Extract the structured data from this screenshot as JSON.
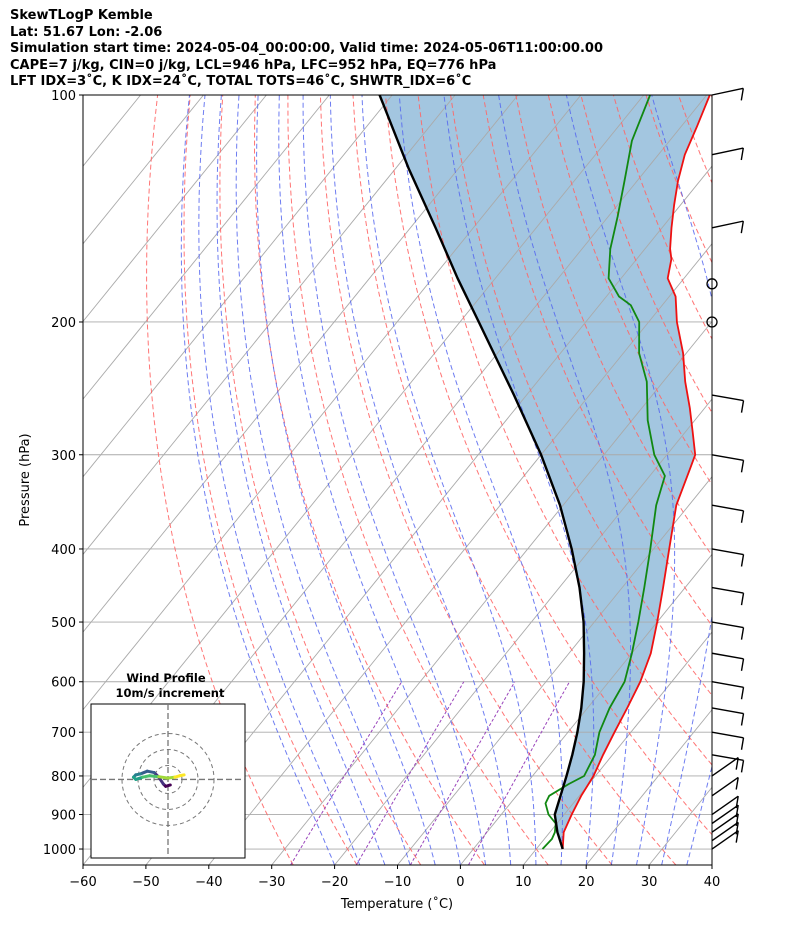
{
  "title": {
    "line1": "SkewTLogP Kemble",
    "line2": "Lat: 51.67   Lon: -2.06",
    "line3": "Simulation start time: 2024-05-04_00:00:00, Valid time: 2024-05-06T11:00:00.00",
    "line4": "CAPE=7 j/kg, CIN=0 j/kg, LCL=946 hPa, LFC=952 hPa, EQ=776 hPa",
    "line5": "LFT IDX=3˚C, K IDX=24˚C, TOTAL TOTS=46˚C, SHWTR_IDX=6˚C"
  },
  "chart_data": {
    "type": "line",
    "subtype": "skew-t log-p",
    "xlabel": "Temperature (˚C)",
    "ylabel": "Pressure (hPa)",
    "xlim": [
      -60,
      40
    ],
    "ylim": [
      1050,
      100
    ],
    "x_ticks": [
      "−60",
      "−50",
      "−40",
      "−30",
      "−20",
      "−10",
      "0",
      "10",
      "20",
      "30",
      "40"
    ],
    "x_tick_values": [
      -60,
      -50,
      -40,
      -30,
      -20,
      -10,
      0,
      10,
      20,
      30,
      40
    ],
    "y_ticks": [
      "100",
      "200",
      "300",
      "400",
      "500",
      "600",
      "700",
      "800",
      "900",
      "1000"
    ],
    "y_tick_values": [
      100,
      200,
      300,
      400,
      500,
      600,
      700,
      800,
      900,
      1000
    ],
    "colors": {
      "temperature": "#ee1111",
      "dewpoint": "#118811",
      "parcel": "#000000",
      "cape_fill": "#a3c6e0",
      "dry_adiabat": "#ff6666",
      "moist_adiabat": "#5566ee",
      "mixing_ratio": "#9944bb",
      "isotherm": "#aaaaaa"
    },
    "series": [
      {
        "name": "Temperature",
        "points": [
          [
            14.2,
            1000
          ],
          [
            12.2,
            950
          ],
          [
            11.2,
            900
          ],
          [
            10.3,
            850
          ],
          [
            9.7,
            800
          ],
          [
            8.5,
            750
          ],
          [
            7.4,
            700
          ],
          [
            6.3,
            650
          ],
          [
            5.0,
            600
          ],
          [
            3.0,
            550
          ],
          [
            0.0,
            500
          ],
          [
            -3.5,
            450
          ],
          [
            -7.5,
            400
          ],
          [
            -12,
            350
          ],
          [
            -14.6,
            312
          ],
          [
            -15.5,
            300
          ],
          [
            -18.8,
            280
          ],
          [
            -22.4,
            260
          ],
          [
            -26.5,
            240
          ],
          [
            -30.5,
            220
          ],
          [
            -35.5,
            200
          ],
          [
            -39,
            185
          ],
          [
            -42.6,
            175
          ],
          [
            -44.5,
            165
          ],
          [
            -46,
            160
          ],
          [
            -48.5,
            150
          ],
          [
            -51,
            140
          ],
          [
            -53.5,
            130
          ],
          [
            -55.8,
            120
          ],
          [
            -57.5,
            110
          ],
          [
            -59.5,
            100
          ]
        ]
      },
      {
        "name": "Dewpoint",
        "points": [
          [
            11,
            1000
          ],
          [
            11.2,
            970
          ],
          [
            10.8,
            950
          ],
          [
            9.8,
            925
          ],
          [
            7.5,
            900
          ],
          [
            5.6,
            870
          ],
          [
            5.2,
            850
          ],
          [
            6.8,
            820
          ],
          [
            8.2,
            800
          ],
          [
            7.2,
            750
          ],
          [
            5.0,
            700
          ],
          [
            3.5,
            650
          ],
          [
            2.5,
            600
          ],
          [
            0.0,
            550
          ],
          [
            -3.0,
            500
          ],
          [
            -6.5,
            450
          ],
          [
            -10.5,
            400
          ],
          [
            -15.2,
            350
          ],
          [
            -17.6,
            320
          ],
          [
            -22,
            300
          ],
          [
            -27.5,
            270
          ],
          [
            -32.6,
            240
          ],
          [
            -37.5,
            220
          ],
          [
            -41.5,
            200
          ],
          [
            -45,
            190
          ],
          [
            -48,
            185
          ],
          [
            -52,
            175
          ],
          [
            -55.5,
            160
          ],
          [
            -58.5,
            145
          ],
          [
            -62,
            130
          ],
          [
            -66,
            115
          ],
          [
            -69,
            100
          ]
        ]
      },
      {
        "name": "Parcel",
        "points": [
          [
            14.2,
            1000
          ],
          [
            11.2,
            950
          ],
          [
            8.5,
            900
          ],
          [
            7.0,
            850
          ],
          [
            5.4,
            800
          ],
          [
            3.6,
            750
          ],
          [
            1.5,
            700
          ],
          [
            -1.0,
            650
          ],
          [
            -4.0,
            600
          ],
          [
            -7.6,
            550
          ],
          [
            -11.7,
            500
          ],
          [
            -16.8,
            450
          ],
          [
            -23.0,
            400
          ],
          [
            -30.5,
            350
          ],
          [
            -40.0,
            300
          ],
          [
            -52.0,
            250
          ],
          [
            -67.0,
            200
          ],
          [
            -76.0,
            175
          ],
          [
            -86.0,
            150
          ],
          [
            -98.0,
            125
          ],
          [
            -112.0,
            100
          ]
        ]
      }
    ],
    "wind_barbs_pressure": [
      100,
      120,
      150,
      178,
      200,
      250,
      300,
      350,
      400,
      450,
      500,
      550,
      600,
      650,
      700,
      750,
      800,
      850,
      900,
      925,
      950,
      975,
      1000
    ],
    "hodograph": {
      "title": "Wind Profile",
      "subtitle": "10m/s increment",
      "points_ms": [
        [
          0.5,
          -1.2
        ],
        [
          -0.5,
          -1.5
        ],
        [
          -1,
          -1
        ],
        [
          -2,
          0.5
        ],
        [
          -3,
          1.5
        ],
        [
          -4.5,
          1.8
        ],
        [
          -6,
          1.2
        ],
        [
          -7,
          1
        ],
        [
          -7.5,
          0.5
        ],
        [
          -7,
          0
        ],
        [
          -5.5,
          0.5
        ],
        [
          -4,
          0.8
        ],
        [
          -2,
          0.6
        ],
        [
          0,
          0.3
        ],
        [
          1.5,
          0.5
        ],
        [
          2.5,
          0.8
        ],
        [
          3.5,
          1
        ]
      ]
    }
  }
}
